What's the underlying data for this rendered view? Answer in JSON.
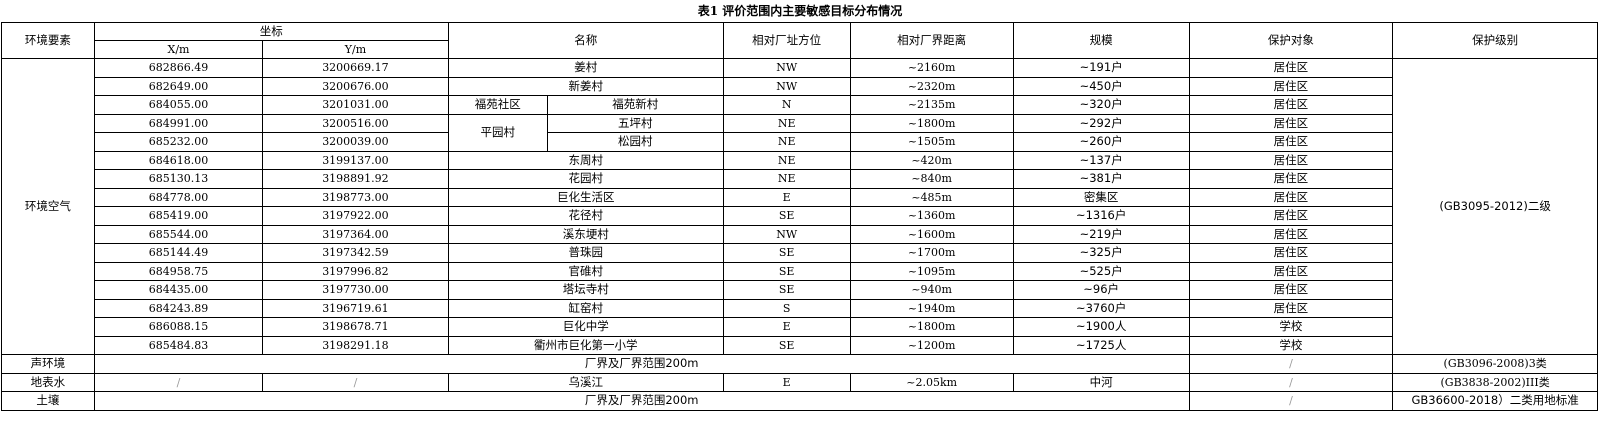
{
  "title": "表1 评价范围内主要敏感目标分布情况",
  "headers": {
    "element": "环境要素",
    "coord": "坐标",
    "x": "X/m",
    "y": "Y/m",
    "name": "名称",
    "direction": "相对厂址方位",
    "distance": "相对厂界距离",
    "scale": "规模",
    "object": "保护对象",
    "level": "保护级别"
  },
  "air": {
    "element": "环境空气",
    "level": "(GB3095-2012)二级",
    "rows": [
      {
        "x": "682866.49",
        "y": "3200669.17",
        "name": "姜村",
        "dir": "NW",
        "dist": "~2160m",
        "scale": "~191户",
        "obj": "居住区"
      },
      {
        "x": "682649.00",
        "y": "3200676.00",
        "name": "新姜村",
        "dir": "NW",
        "dist": "~2320m",
        "scale": "~450户",
        "obj": "居住区"
      },
      {
        "x": "684055.00",
        "y": "3201031.00",
        "group": "福苑社区",
        "name": "福苑新村",
        "dir": "N",
        "dist": "~2135m",
        "scale": "~320户",
        "obj": "居住区"
      },
      {
        "x": "684991.00",
        "y": "3200516.00",
        "group": "平园村",
        "name": "五坪村",
        "dir": "NE",
        "dist": "~1800m",
        "scale": "~292户",
        "obj": "居住区"
      },
      {
        "x": "685232.00",
        "y": "3200039.00",
        "name": "松园村",
        "dir": "NE",
        "dist": "~1505m",
        "scale": "~260户",
        "obj": "居住区"
      },
      {
        "x": "684618.00",
        "y": "3199137.00",
        "name": "东周村",
        "dir": "NE",
        "dist": "~420m",
        "scale": "~137户",
        "obj": "居住区"
      },
      {
        "x": "685130.13",
        "y": "3198891.92",
        "name": "花园村",
        "dir": "NE",
        "dist": "~840m",
        "scale": "~381户",
        "obj": "居住区"
      },
      {
        "x": "684778.00",
        "y": "3198773.00",
        "name": "巨化生活区",
        "dir": "E",
        "dist": "~485m",
        "scale": "密集区",
        "obj": "居住区"
      },
      {
        "x": "685419.00",
        "y": "3197922.00",
        "name": "花径村",
        "dir": "SE",
        "dist": "~1360m",
        "scale": "~1316户",
        "obj": "居住区"
      },
      {
        "x": "685544.00",
        "y": "3197364.00",
        "name": "溪东埂村",
        "dir": "NW",
        "dist": "~1600m",
        "scale": "~219户",
        "obj": "居住区"
      },
      {
        "x": "685144.49",
        "y": "3197342.59",
        "name": "普珠园",
        "dir": "SE",
        "dist": "~1700m",
        "scale": "~325户",
        "obj": "居住区"
      },
      {
        "x": "684958.75",
        "y": "3197996.82",
        "name": "官碓村",
        "dir": "SE",
        "dist": "~1095m",
        "scale": "~525户",
        "obj": "居住区"
      },
      {
        "x": "684435.00",
        "y": "3197730.00",
        "name": "塔坛寺村",
        "dir": "SE",
        "dist": "~940m",
        "scale": "~96户",
        "obj": "居住区"
      },
      {
        "x": "684243.89",
        "y": "3196719.61",
        "name": "缸窑村",
        "dir": "S",
        "dist": "~1940m",
        "scale": "~3760户",
        "obj": "居住区"
      },
      {
        "x": "686088.15",
        "y": "3198678.71",
        "name": "巨化中学",
        "dir": "E",
        "dist": "~1800m",
        "scale": "~1900人",
        "obj": "学校"
      },
      {
        "x": "685484.83",
        "y": "3198291.18",
        "name": "衢州市巨化第一小学",
        "dir": "SE",
        "dist": "~1200m",
        "scale": "~1725人",
        "obj": "学校"
      }
    ]
  },
  "noise": {
    "element": "声环境",
    "desc": "厂界及厂界范围200m",
    "obj": "/",
    "level": "(GB3096-2008)3类"
  },
  "water": {
    "element": "地表水",
    "x": "/",
    "y": "/",
    "name": "乌溪江",
    "dir": "E",
    "dist": "~2.05km",
    "scale": "中河",
    "obj": "/",
    "level": "(GB3838-2002)III类"
  },
  "soil": {
    "element": "土壤",
    "desc": "厂界及厂界范围200m",
    "obj": "/",
    "level": "GB36600-2018）二类用地标准"
  }
}
